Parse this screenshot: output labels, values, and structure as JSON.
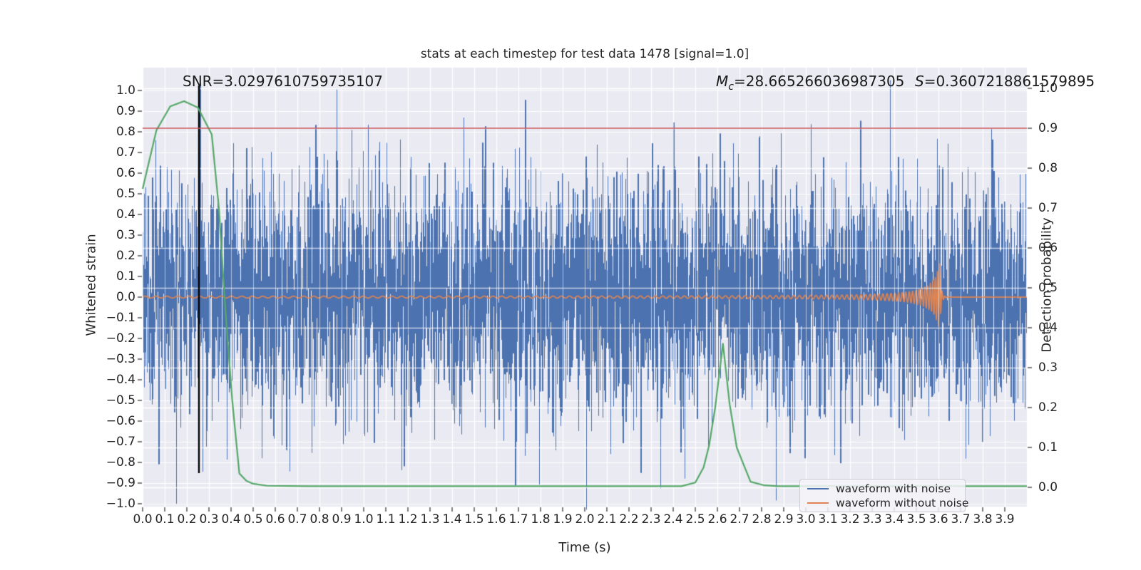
{
  "title": "stats at each timestep for test data 1478 [signal=1.0]",
  "annotations": {
    "snr": "SNR=3.0297610759735107",
    "mc_m": "M",
    "mc_sub": "c",
    "mc_rest": "=28.665266036987305",
    "s_s": "S",
    "s_rest": "=0.3607218861579895"
  },
  "legend": {
    "items": [
      {
        "label": "waveform with noise",
        "color": "#4C72B0"
      },
      {
        "label": "waveform without noise",
        "color": "#DD8452"
      }
    ]
  },
  "colors": {
    "figure_background": "#ffffff",
    "plot_background": "#EAEAF2",
    "grid": "#FFFFFF",
    "blue": "#4C72B0",
    "orange": "#DD8452",
    "green": "#55A868",
    "red": "#C44E52",
    "black": "#000000",
    "tick": "#3a3a3a"
  },
  "chart_data": {
    "type": "line",
    "title": "stats at each timestep for test data 1478 [signal=1.0]",
    "xlabel": "Time (s)",
    "ylabel_left": "Whitened strain",
    "ylabel_right": "Detection probability",
    "xlim": [
      0.0,
      4.0
    ],
    "ylim_left": [
      -1.01,
      1.11
    ],
    "ylim_right": [
      -0.046,
      1.05
    ],
    "grid": true,
    "legend_position": "lower right",
    "x_ticks": [
      "0.0",
      "0.1",
      "0.2",
      "0.3",
      "0.4",
      "0.5",
      "0.6",
      "0.7",
      "0.8",
      "0.9",
      "1.0",
      "1.1",
      "1.2",
      "1.3",
      "1.4",
      "1.5",
      "1.6",
      "1.7",
      "1.8",
      "1.9",
      "2.0",
      "2.1",
      "2.2",
      "2.3",
      "2.4",
      "2.5",
      "2.6",
      "2.7",
      "2.8",
      "2.9",
      "3.0",
      "3.1",
      "3.2",
      "3.3",
      "3.4",
      "3.5",
      "3.6",
      "3.7",
      "3.8",
      "3.9"
    ],
    "y_left_ticks": [
      "1.0",
      "0.9",
      "0.8",
      "0.7",
      "0.6",
      "0.5",
      "0.4",
      "0.3",
      "0.2",
      "0.1",
      "0.0",
      "−0.1",
      "−0.2",
      "−0.3",
      "−0.4",
      "−0.5",
      "−0.6",
      "−0.7",
      "−0.8",
      "−0.9",
      "−1.0"
    ],
    "y_right_ticks": [
      "1.0",
      "0.9",
      "0.8",
      "0.7",
      "0.6",
      "0.5",
      "0.4",
      "0.3",
      "0.2",
      "0.1",
      "0.0"
    ],
    "series": [
      {
        "name": "waveform with noise",
        "axis": "left",
        "color": "#4C72B0",
        "kind": "gaussian-noise",
        "sigma": 0.29,
        "seed": 1478,
        "samples_per_pixel": 4,
        "clip": 1.05
      },
      {
        "name": "waveform without noise",
        "axis": "left",
        "color": "#DD8452",
        "kind": "chirp",
        "merger_t": 3.606,
        "amp_base": 0.004,
        "amp_coef": 0.0025,
        "amp_pow": 1.3,
        "amp_soft": 0.04,
        "amp_max": 0.165,
        "ringdown_tau": 0.006,
        "f0": 20,
        "f_ref": 3.66,
        "f_pow": 0.4
      },
      {
        "name": "detection probability",
        "axis": "right",
        "color": "#55A868",
        "kind": "points",
        "points": [
          [
            0.0,
            0.748
          ],
          [
            0.0625,
            0.895
          ],
          [
            0.125,
            0.955
          ],
          [
            0.1875,
            0.968
          ],
          [
            0.25,
            0.952
          ],
          [
            0.3125,
            0.885
          ],
          [
            0.345,
            0.7
          ],
          [
            0.375,
            0.44
          ],
          [
            0.405,
            0.22
          ],
          [
            0.4375,
            0.035
          ],
          [
            0.47,
            0.016
          ],
          [
            0.5,
            0.009
          ],
          [
            0.5625,
            0.004
          ],
          [
            0.75,
            0.003
          ],
          [
            1.0,
            0.003
          ],
          [
            1.5,
            0.003
          ],
          [
            2.0,
            0.003
          ],
          [
            2.4375,
            0.003
          ],
          [
            2.5,
            0.012
          ],
          [
            2.5375,
            0.05
          ],
          [
            2.5625,
            0.105
          ],
          [
            2.59,
            0.2
          ],
          [
            2.625,
            0.36
          ],
          [
            2.655,
            0.21
          ],
          [
            2.6875,
            0.1
          ],
          [
            2.72,
            0.055
          ],
          [
            2.75,
            0.014
          ],
          [
            2.8125,
            0.005
          ],
          [
            2.875,
            0.003
          ],
          [
            3.0,
            0.003
          ],
          [
            3.5,
            0.003
          ],
          [
            4.0,
            0.003
          ]
        ]
      },
      {
        "name": "detection threshold",
        "axis": "right",
        "color": "#C44E52",
        "kind": "hline",
        "y": 0.9
      },
      {
        "name": "event time marker",
        "axis": "left",
        "color": "#000000",
        "kind": "vline",
        "x": 0.2548,
        "span": [
          -0.852,
          1.024
        ]
      }
    ]
  }
}
